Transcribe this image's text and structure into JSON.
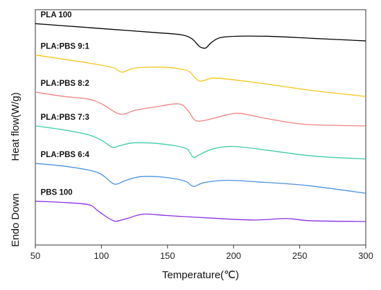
{
  "chart_data": {
    "type": "line",
    "xlabel": "Temperature(℃)",
    "ylabel": "Heat flow(W/g)",
    "ylabel_secondary": "Endo Down",
    "xlim": [
      50,
      300
    ],
    "xticks": [
      50,
      100,
      150,
      200,
      250,
      300
    ],
    "grid": false,
    "legend": "inline labels above each curve",
    "series": [
      {
        "name": "PLA 100",
        "color": "#000000",
        "points": [
          [
            50,
            10.55
          ],
          [
            80,
            10.35
          ],
          [
            110,
            10.15
          ],
          [
            140,
            9.95
          ],
          [
            160,
            9.8
          ],
          [
            168,
            9.55
          ],
          [
            172,
            9.2
          ],
          [
            175,
            8.95
          ],
          [
            179,
            8.9
          ],
          [
            183,
            9.25
          ],
          [
            190,
            9.6
          ],
          [
            205,
            9.7
          ],
          [
            230,
            9.68
          ],
          [
            260,
            9.55
          ],
          [
            300,
            9.38
          ]
        ]
      },
      {
        "name": "PLA:PBS 9:1",
        "color": "#F5C518",
        "points": [
          [
            50,
            8.42
          ],
          [
            70,
            8.15
          ],
          [
            90,
            7.88
          ],
          [
            108,
            7.58
          ],
          [
            113,
            7.35
          ],
          [
            116,
            7.25
          ],
          [
            121,
            7.42
          ],
          [
            128,
            7.56
          ],
          [
            150,
            7.58
          ],
          [
            165,
            7.35
          ],
          [
            170,
            6.95
          ],
          [
            174,
            6.65
          ],
          [
            178,
            6.7
          ],
          [
            186,
            6.85
          ],
          [
            205,
            6.68
          ],
          [
            230,
            6.38
          ],
          [
            260,
            6.0
          ],
          [
            300,
            5.6
          ]
        ]
      },
      {
        "name": "PLA:PBS 8:2",
        "color": "#F08080",
        "points": [
          [
            50,
            5.9
          ],
          [
            70,
            5.62
          ],
          [
            90,
            5.42
          ],
          [
            100,
            5.1
          ],
          [
            110,
            4.55
          ],
          [
            114,
            4.4
          ],
          [
            118,
            4.42
          ],
          [
            125,
            4.65
          ],
          [
            140,
            4.88
          ],
          [
            158,
            5.1
          ],
          [
            165,
            4.7
          ],
          [
            170,
            4.05
          ],
          [
            174,
            3.92
          ],
          [
            182,
            4.05
          ],
          [
            195,
            4.35
          ],
          [
            205,
            4.45
          ],
          [
            225,
            4.1
          ],
          [
            255,
            3.7
          ],
          [
            300,
            3.6
          ]
        ]
      },
      {
        "name": "PLA:PBS 7:3",
        "color": "#3CCBA8",
        "points": [
          [
            50,
            3.6
          ],
          [
            70,
            3.35
          ],
          [
            90,
            3.0
          ],
          [
            100,
            2.62
          ],
          [
            107,
            2.2
          ],
          [
            110,
            2.14
          ],
          [
            115,
            2.28
          ],
          [
            125,
            2.45
          ],
          [
            145,
            2.38
          ],
          [
            163,
            2.1
          ],
          [
            167,
            1.75
          ],
          [
            170,
            1.45
          ],
          [
            175,
            1.68
          ],
          [
            185,
            2.05
          ],
          [
            200,
            2.2
          ],
          [
            225,
            1.95
          ],
          [
            260,
            1.55
          ],
          [
            300,
            1.35
          ]
        ]
      },
      {
        "name": "PLA:PBS 6:4",
        "color": "#4A90E2",
        "points": [
          [
            50,
            1.05
          ],
          [
            70,
            0.88
          ],
          [
            90,
            0.6
          ],
          [
            100,
            0.3
          ],
          [
            108,
            -0.28
          ],
          [
            112,
            -0.35
          ],
          [
            118,
            -0.12
          ],
          [
            130,
            0.15
          ],
          [
            148,
            0.1
          ],
          [
            163,
            -0.15
          ],
          [
            168,
            -0.45
          ],
          [
            171,
            -0.5
          ],
          [
            178,
            -0.25
          ],
          [
            195,
            -0.1
          ],
          [
            220,
            -0.22
          ],
          [
            255,
            -0.45
          ],
          [
            300,
            -0.98
          ]
        ]
      },
      {
        "name": "PBS 100",
        "color": "#8A2BE2",
        "points": [
          [
            50,
            -1.52
          ],
          [
            70,
            -1.6
          ],
          [
            90,
            -1.75
          ],
          [
            97,
            -2.15
          ],
          [
            104,
            -2.6
          ],
          [
            110,
            -2.88
          ],
          [
            113,
            -2.85
          ],
          [
            120,
            -2.68
          ],
          [
            132,
            -2.4
          ],
          [
            150,
            -2.5
          ],
          [
            185,
            -2.68
          ],
          [
            215,
            -2.8
          ],
          [
            240,
            -2.7
          ],
          [
            258,
            -2.85
          ],
          [
            300,
            -2.9
          ]
        ]
      }
    ]
  }
}
